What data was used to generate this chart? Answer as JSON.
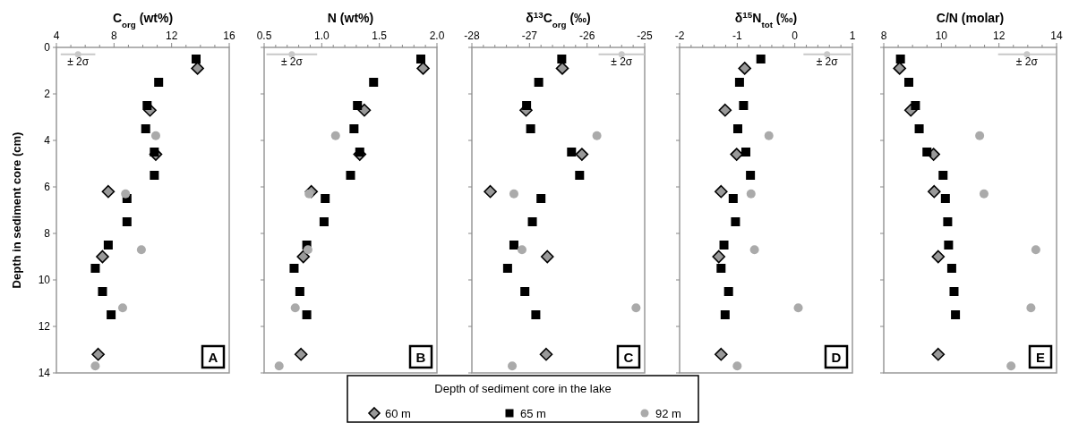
{
  "chart_data": [
    {
      "type": "scatter",
      "title": "C$_{org}$ (wt%)",
      "ylabel": "Depth in sediment core (cm)",
      "xlim": [
        4,
        16
      ],
      "ylim": [
        14,
        0
      ],
      "xticks": [
        4,
        {
          "value": 5,
          "label": null
        },
        {
          "value": 6,
          "label": null
        },
        {
          "value": 7,
          "label": null
        },
        8,
        {
          "value": 9,
          "label": null
        },
        {
          "value": 10,
          "label": null
        },
        {
          "value": 11,
          "label": null
        },
        12,
        {
          "value": 13,
          "label": null
        },
        {
          "value": 14,
          "label": null
        },
        {
          "value": 15,
          "label": null
        },
        16
      ],
      "yticks": [
        0,
        2,
        4,
        6,
        8,
        10,
        12,
        14
      ],
      "annotations": [
        "A"
      ],
      "legend": "bottom",
      "legend_title": "Depth of sediment core in the lake",
      "series": [
        {
          "name": "60 m",
          "marker": "diamond",
          "color": "#999999",
          "x": [
            13.8,
            10.5,
            10.9,
            7.6,
            7.2,
            6.9
          ],
          "values": [
            0.9,
            2.7,
            4.6,
            6.2,
            9.0,
            13.2
          ]
        },
        {
          "name": "65 m",
          "marker": "square",
          "color": "#000000",
          "x": [
            13.7,
            11.1,
            10.3,
            10.2,
            10.8,
            10.8,
            8.9,
            8.9,
            7.6,
            6.7,
            7.2,
            7.8
          ],
          "values": [
            0.5,
            1.5,
            2.5,
            3.5,
            4.5,
            5.5,
            6.5,
            7.5,
            8.5,
            9.5,
            10.5,
            11.5
          ]
        },
        {
          "name": "92 m",
          "marker": "circle",
          "color": "#aaaaaa",
          "x": [
            10.9,
            8.8,
            9.9,
            8.6,
            6.7
          ],
          "values": [
            3.8,
            6.3,
            8.7,
            11.2,
            13.7
          ]
        },
        {
          "name": "± 2σ",
          "marker": "circle",
          "color": "#c8c8c8",
          "x": [
            5.5
          ],
          "values": [
            0.3
          ],
          "xerrors": [
            1.2
          ]
        }
      ]
    },
    {
      "type": "scatter",
      "title": "N (wt%)",
      "xlim": [
        0.5,
        2.0
      ],
      "ylim": [
        14,
        0
      ],
      "tick_labels": "x",
      "xticks": [
        {
          "value": 0.5,
          "label": "0.5"
        },
        {
          "value": 0.6,
          "label": null
        },
        {
          "value": 0.7,
          "label": null
        },
        {
          "value": 0.8,
          "label": null
        },
        {
          "value": 0.9,
          "label": null
        },
        {
          "value": 1.0,
          "label": "1.0"
        },
        {
          "value": 1.1,
          "label": null
        },
        {
          "value": 1.2,
          "label": null
        },
        {
          "value": 1.3,
          "label": null
        },
        {
          "value": 1.4,
          "label": null
        },
        {
          "value": 1.5,
          "label": "1.5"
        },
        {
          "value": 1.6,
          "label": null
        },
        {
          "value": 1.7,
          "label": null
        },
        {
          "value": 1.8,
          "label": null
        },
        {
          "value": 1.9,
          "label": null
        },
        {
          "value": 2.0,
          "label": "2.0"
        }
      ],
      "yticks": [
        0,
        2,
        4,
        6,
        8,
        10,
        12,
        14
      ],
      "annotations": [
        "B"
      ],
      "series": [
        {
          "marker": "diamond",
          "color": "#999999",
          "x": [
            1.88,
            1.37,
            1.33,
            0.91,
            0.84,
            0.82
          ],
          "values": [
            0.9,
            2.7,
            4.6,
            6.2,
            9.0,
            13.2
          ]
        },
        {
          "marker": "square",
          "color": "#000000",
          "x": [
            1.86,
            1.45,
            1.31,
            1.28,
            1.33,
            1.25,
            1.03,
            1.02,
            0.87,
            0.76,
            0.81,
            0.87
          ],
          "values": [
            0.5,
            1.5,
            2.5,
            3.5,
            4.5,
            5.5,
            6.5,
            7.5,
            8.5,
            9.5,
            10.5,
            11.5
          ]
        },
        {
          "marker": "circle",
          "color": "#aaaaaa",
          "x": [
            1.12,
            0.89,
            0.88,
            0.77,
            0.63
          ],
          "values": [
            3.8,
            6.3,
            8.7,
            11.2,
            13.7
          ]
        },
        {
          "name": "± 2σ",
          "marker": "circle",
          "color": "#c8c8c8",
          "x": [
            0.74
          ],
          "values": [
            0.3
          ],
          "xerrors": [
            0.22
          ]
        }
      ]
    },
    {
      "type": "scatter",
      "title": "δ$^{13}$C$_{org}$ (‰)",
      "xlim": [
        -28,
        -25
      ],
      "ylim": [
        14,
        0
      ],
      "tick_labels": "x",
      "xticks": [
        -28,
        {
          "value": -27.8,
          "label": null
        },
        {
          "value": -27.6,
          "label": null
        },
        {
          "value": -27.4,
          "label": null
        },
        {
          "value": -27.2,
          "label": null
        },
        -27,
        {
          "value": -26.8,
          "label": null
        },
        {
          "value": -26.6,
          "label": null
        },
        {
          "value": -26.4,
          "label": null
        },
        {
          "value": -26.2,
          "label": null
        },
        -26,
        {
          "value": -25.8,
          "label": null
        },
        {
          "value": -25.6,
          "label": null
        },
        {
          "value": -25.4,
          "label": null
        },
        {
          "value": -25.2,
          "label": null
        },
        -25
      ],
      "yticks": [
        0,
        2,
        4,
        6,
        8,
        10,
        12,
        14
      ],
      "annotations": [
        "C"
      ],
      "series": [
        {
          "marker": "diamond",
          "color": "#999999",
          "x": [
            -26.43,
            -27.06,
            -26.09,
            -27.68,
            -26.69,
            -26.71
          ],
          "values": [
            0.9,
            2.7,
            4.6,
            6.2,
            9.0,
            13.2
          ]
        },
        {
          "marker": "square",
          "color": "#000000",
          "x": [
            -26.44,
            -26.84,
            -27.05,
            -26.98,
            -26.27,
            -26.13,
            -26.8,
            -26.95,
            -27.27,
            -27.38,
            -27.08,
            -26.89
          ],
          "values": [
            0.5,
            1.5,
            2.5,
            3.5,
            4.5,
            5.5,
            6.5,
            7.5,
            8.5,
            9.5,
            10.5,
            11.5
          ]
        },
        {
          "marker": "circle",
          "color": "#aaaaaa",
          "x": [
            -25.83,
            -27.27,
            -27.13,
            -25.15,
            -27.3
          ],
          "values": [
            3.8,
            6.3,
            8.7,
            11.2,
            13.7
          ]
        },
        {
          "name": "± 2σ",
          "marker": "circle",
          "color": "#c8c8c8",
          "x": [
            -25.4
          ],
          "values": [
            0.3
          ],
          "xerrors": [
            0.4
          ]
        }
      ]
    },
    {
      "type": "scatter",
      "title": "δ$^{15}$N$_{tot}$ (‰)",
      "xlim": [
        -2,
        1
      ],
      "ylim": [
        14,
        0
      ],
      "tick_labels": "x",
      "xticks": [
        -2,
        {
          "value": -1.8,
          "label": null
        },
        {
          "value": -1.6,
          "label": null
        },
        {
          "value": -1.4,
          "label": null
        },
        {
          "value": -1.2,
          "label": null
        },
        -1,
        {
          "value": -0.8,
          "label": null
        },
        {
          "value": -0.6,
          "label": null
        },
        {
          "value": -0.4,
          "label": null
        },
        {
          "value": -0.2,
          "label": null
        },
        0,
        {
          "value": 0.2,
          "label": null
        },
        {
          "value": 0.4,
          "label": null
        },
        {
          "value": 0.6,
          "label": null
        },
        {
          "value": 0.8,
          "label": null
        },
        1
      ],
      "yticks": [
        0,
        2,
        4,
        6,
        8,
        10,
        12,
        14
      ],
      "annotations": [
        "D"
      ],
      "series": [
        {
          "marker": "diamond",
          "color": "#999999",
          "x": [
            -0.87,
            -1.21,
            -1.01,
            -1.28,
            -1.32,
            -1.28
          ],
          "values": [
            0.9,
            2.7,
            4.6,
            6.2,
            9.0,
            13.2
          ]
        },
        {
          "marker": "square",
          "color": "#000000",
          "x": [
            -0.59,
            -0.96,
            -0.89,
            -0.99,
            -0.85,
            -0.77,
            -1.07,
            -1.03,
            -1.23,
            -1.28,
            -1.15,
            -1.21
          ],
          "values": [
            0.5,
            1.5,
            2.5,
            3.5,
            4.5,
            5.5,
            6.5,
            7.5,
            8.5,
            9.5,
            10.5,
            11.5
          ]
        },
        {
          "marker": "circle",
          "color": "#aaaaaa",
          "x": [
            -0.45,
            -0.76,
            -0.7,
            0.06,
            -1.0
          ],
          "values": [
            3.8,
            6.3,
            8.7,
            11.2,
            13.7
          ]
        },
        {
          "name": "± 2σ",
          "marker": "circle",
          "color": "#c8c8c8",
          "x": [
            0.56
          ],
          "values": [
            0.3
          ],
          "xerrors": [
            0.41
          ]
        }
      ]
    },
    {
      "type": "scatter",
      "title": "C/N (molar)",
      "xlim": [
        8,
        14
      ],
      "ylim": [
        14,
        0
      ],
      "tick_labels": "x",
      "xticks": [
        8,
        {
          "value": 8.5,
          "label": null
        },
        {
          "value": 9,
          "label": null
        },
        {
          "value": 9.5,
          "label": null
        },
        10,
        {
          "value": 10.5,
          "label": null
        },
        {
          "value": 11,
          "label": null
        },
        {
          "value": 11.5,
          "label": null
        },
        12,
        {
          "value": 12.5,
          "label": null
        },
        {
          "value": 13,
          "label": null
        },
        {
          "value": 13.5,
          "label": null
        },
        14
      ],
      "yticks": [
        0,
        2,
        4,
        6,
        8,
        10,
        12,
        14
      ],
      "annotations": [
        "E"
      ],
      "series": [
        {
          "marker": "diamond",
          "color": "#999999",
          "x": [
            8.55,
            8.94,
            9.73,
            9.75,
            9.89,
            9.89
          ],
          "values": [
            0.9,
            2.7,
            4.6,
            6.2,
            9.0,
            13.2
          ]
        },
        {
          "marker": "square",
          "color": "#000000",
          "x": [
            8.58,
            8.87,
            9.1,
            9.23,
            9.5,
            10.06,
            10.14,
            10.22,
            10.25,
            10.36,
            10.44,
            10.49
          ],
          "values": [
            0.5,
            1.5,
            2.5,
            3.5,
            4.5,
            5.5,
            6.5,
            7.5,
            8.5,
            9.5,
            10.5,
            11.5
          ]
        },
        {
          "marker": "circle",
          "color": "#aaaaaa",
          "x": [
            11.33,
            11.48,
            13.28,
            13.11,
            12.42
          ],
          "values": [
            3.8,
            6.3,
            8.7,
            11.2,
            13.7
          ]
        },
        {
          "name": "± 2σ",
          "marker": "circle",
          "color": "#c8c8c8",
          "x": [
            12.97
          ],
          "values": [
            0.3
          ],
          "xerrors": [
            1.0
          ]
        }
      ]
    }
  ]
}
